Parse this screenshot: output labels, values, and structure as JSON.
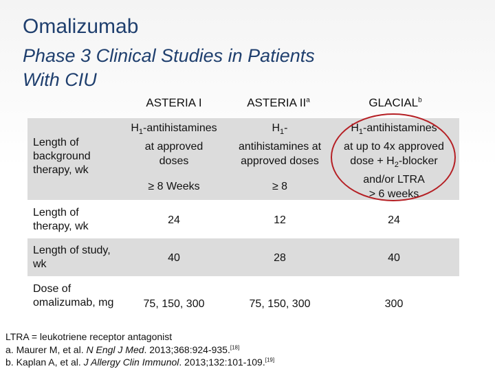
{
  "title": "Omalizumab",
  "subtitle_line1": "Phase 3 Clinical Studies in Patients",
  "subtitle_line2": "With CIU",
  "headers": {
    "asteria1": "ASTERIA I",
    "asteria2": "ASTERIA II",
    "asteria2_sup": "a",
    "glacial": "GLACIAL",
    "glacial_sup": "b"
  },
  "rows": {
    "background": {
      "label": "Length of background therapy, wk",
      "asteria1_a": "H",
      "asteria1_sub": "1",
      "asteria1_b": "-antihistamines",
      "asteria1_line2": "at approved",
      "asteria1_line3": "doses",
      "asteria1_duration": "≥ 8 Weeks",
      "asteria2_a": "H",
      "asteria2_sub": "1",
      "asteria2_b": "-",
      "asteria2_line2": "antihistamines at",
      "asteria2_line3": "approved doses",
      "asteria2_duration": "≥ 8",
      "glacial_a": "H",
      "glacial_sub": "1",
      "glacial_b": "-antihistamines",
      "glacial_line2": "at up to 4x approved",
      "glacial_line3a": "dose + H",
      "glacial_line3_sub": "2",
      "glacial_line3b": "-blocker",
      "glacial_line4": "and/or LTRA",
      "glacial_line5": "> 6 weeks"
    },
    "therapy": {
      "label": "Length of therapy, wk",
      "asteria1": "24",
      "asteria2": "12",
      "glacial": "24"
    },
    "study": {
      "label": "Length of study, wk",
      "asteria1": "40",
      "asteria2": "28",
      "glacial": "40"
    },
    "dose": {
      "label": "Dose of omalizumab, mg",
      "asteria1": "75, 150, 300",
      "asteria2": "75, 150, 300",
      "glacial": "300"
    }
  },
  "footnotes": {
    "ltra": "LTRA = leukotriene receptor antagonist",
    "a_pre": "a. Maurer M, et al. ",
    "a_journal": "N Engl J Med",
    "a_post": ". 2013;368:924-935.",
    "a_ref": "[18]",
    "b_pre": "b. Kaplan A, et al. ",
    "b_journal": "J Allergy Clin Immunol",
    "b_post": ". 2013;132:101-109.",
    "b_ref": "[19]"
  },
  "colors": {
    "title": "#1f3f6e",
    "band": "#dcdcdc",
    "highlight_oval": "#b51f24"
  }
}
